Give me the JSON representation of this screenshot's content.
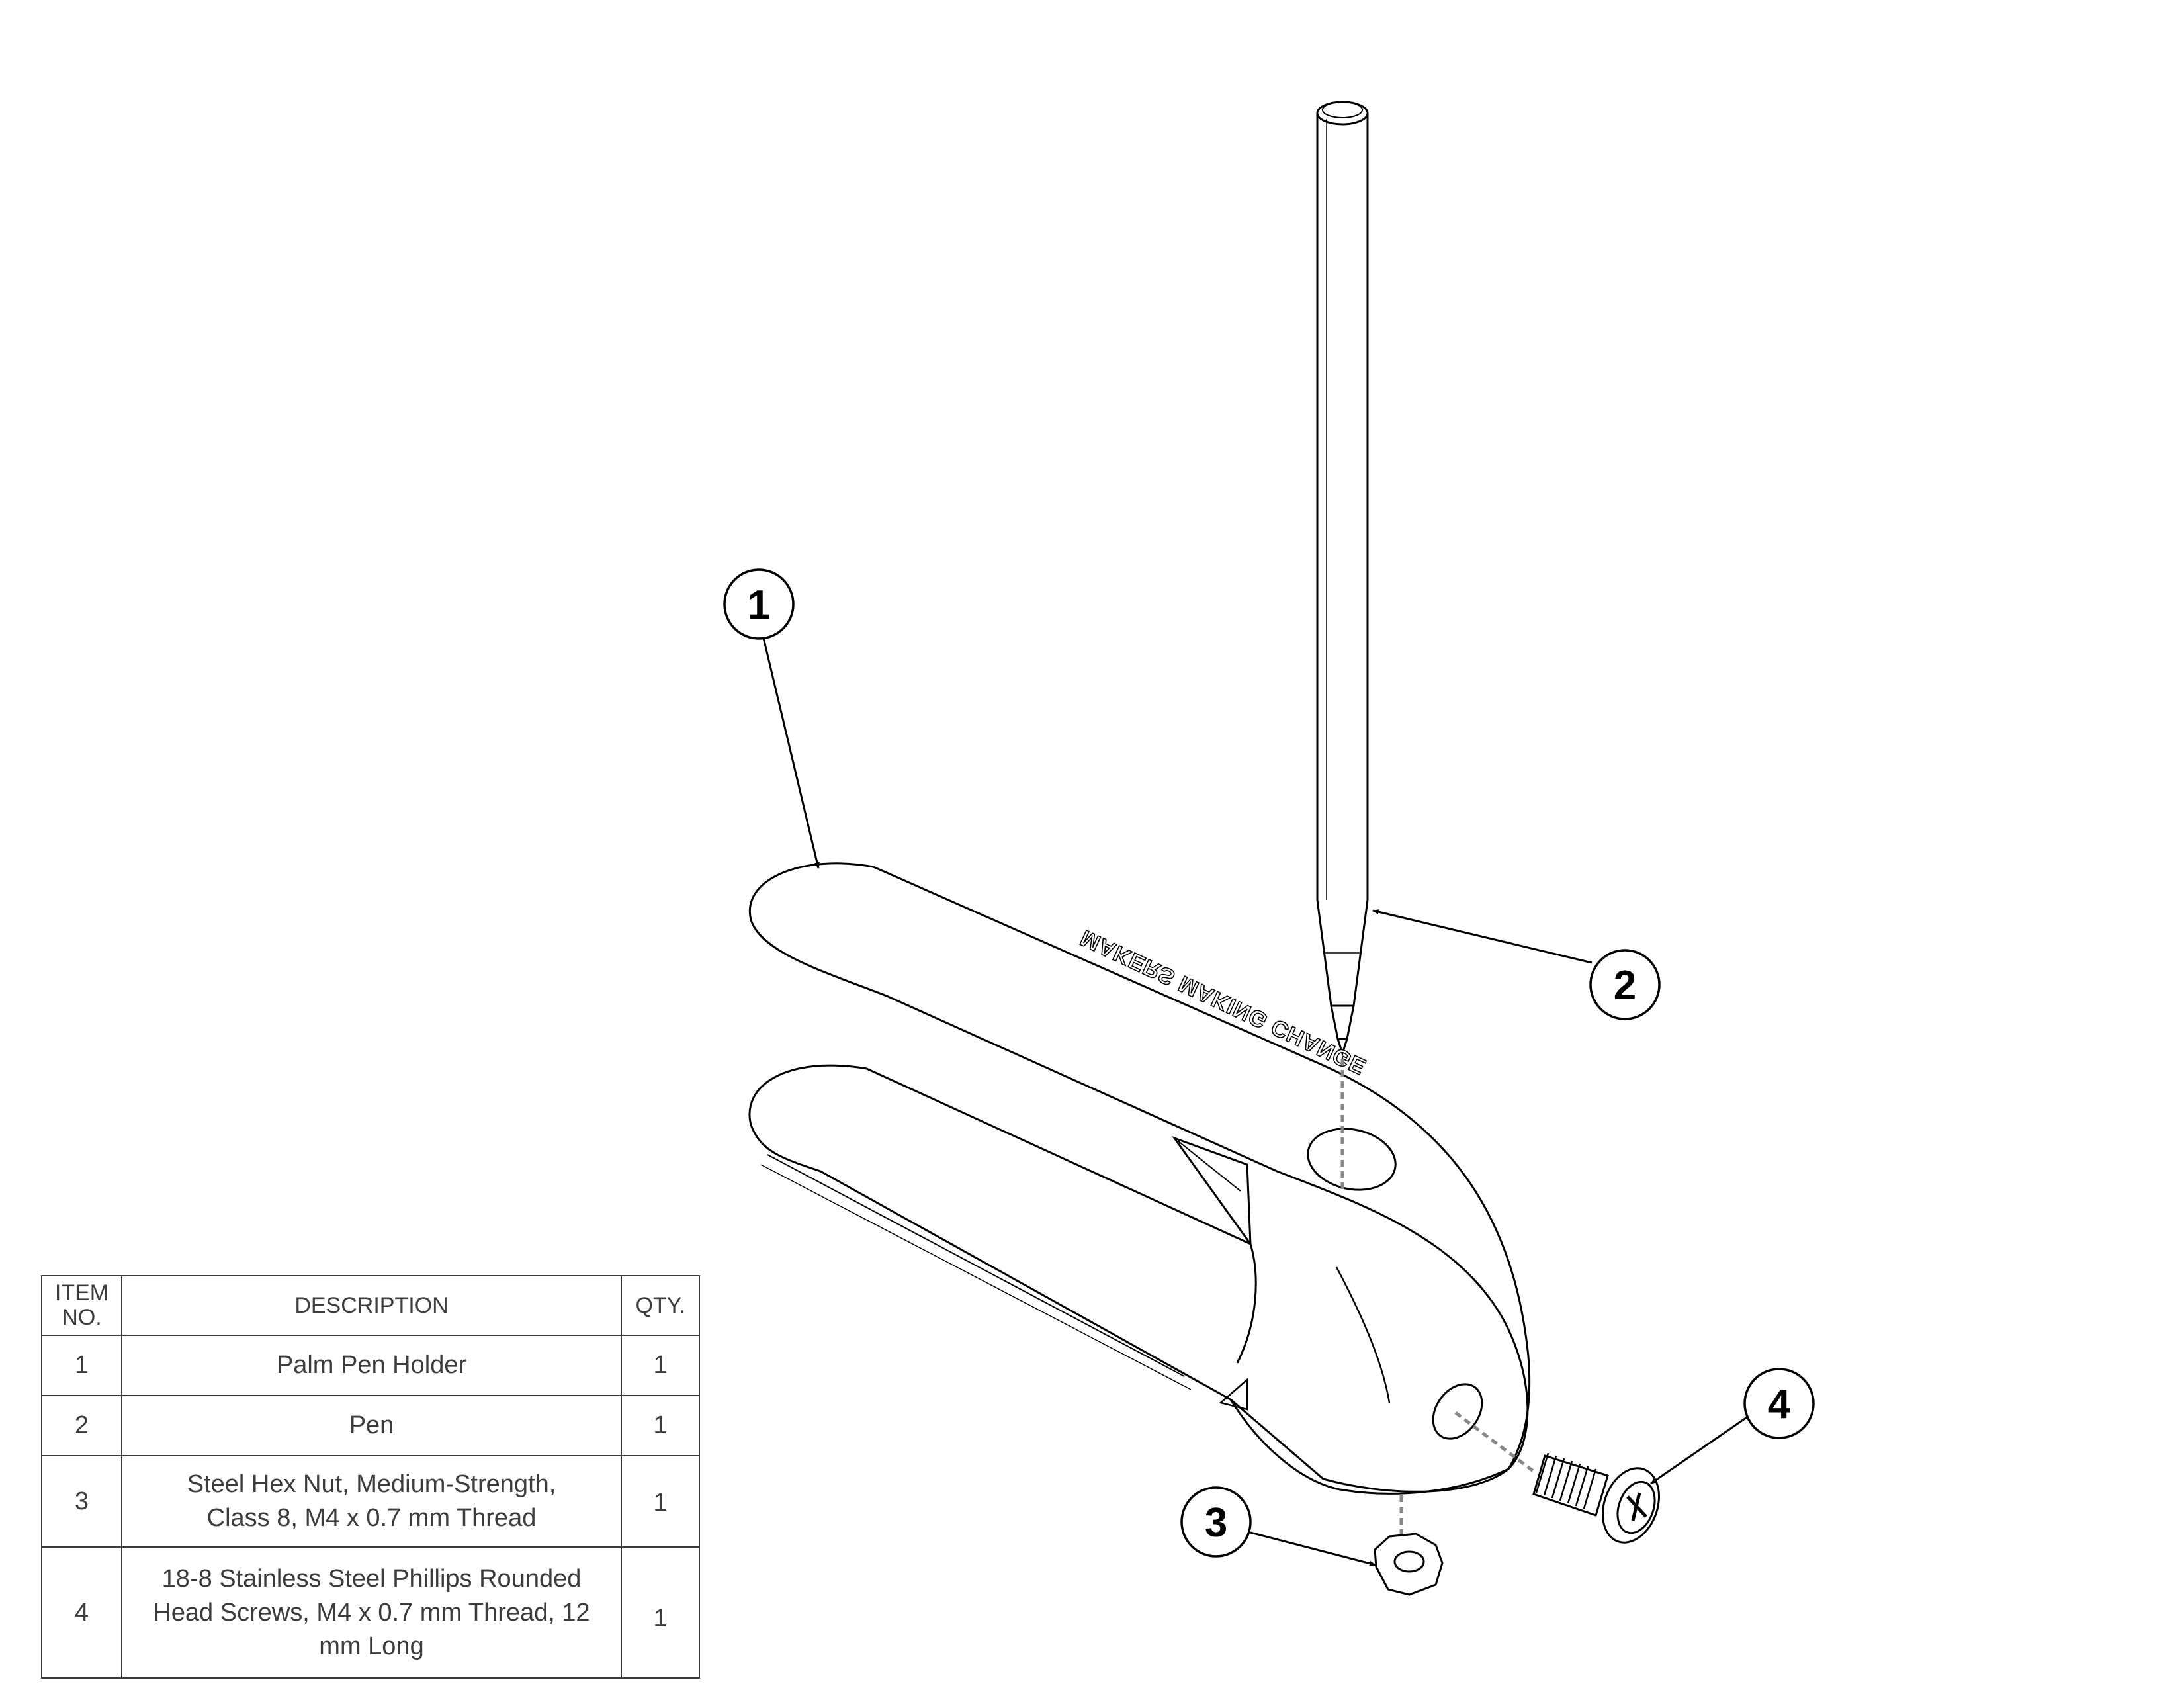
{
  "bom": {
    "headers": {
      "item_no": "ITEM NO.",
      "description": "DESCRIPTION",
      "qty": "QTY."
    },
    "rows": [
      {
        "item": "1",
        "description": "Palm Pen Holder",
        "qty": "1"
      },
      {
        "item": "2",
        "description": "Pen",
        "qty": "1"
      },
      {
        "item": "3",
        "description": "Steel Hex Nut, Medium-Strength, Class 8, M4 x 0.7 mm Thread",
        "qty": "1"
      },
      {
        "item": "4",
        "description": "18-8 Stainless Steel Phillips Rounded Head Screws, M4 x 0.7 mm Thread, 12 mm Long",
        "qty": "1"
      }
    ]
  },
  "balloons": {
    "b1": "1",
    "b2": "2",
    "b3": "3",
    "b4": "4"
  },
  "engraving": "MAKERS MAKING CHANGE",
  "colors": {
    "line": "#000000",
    "hidden_line": "#888888",
    "table_border": "#3a3a3a"
  }
}
